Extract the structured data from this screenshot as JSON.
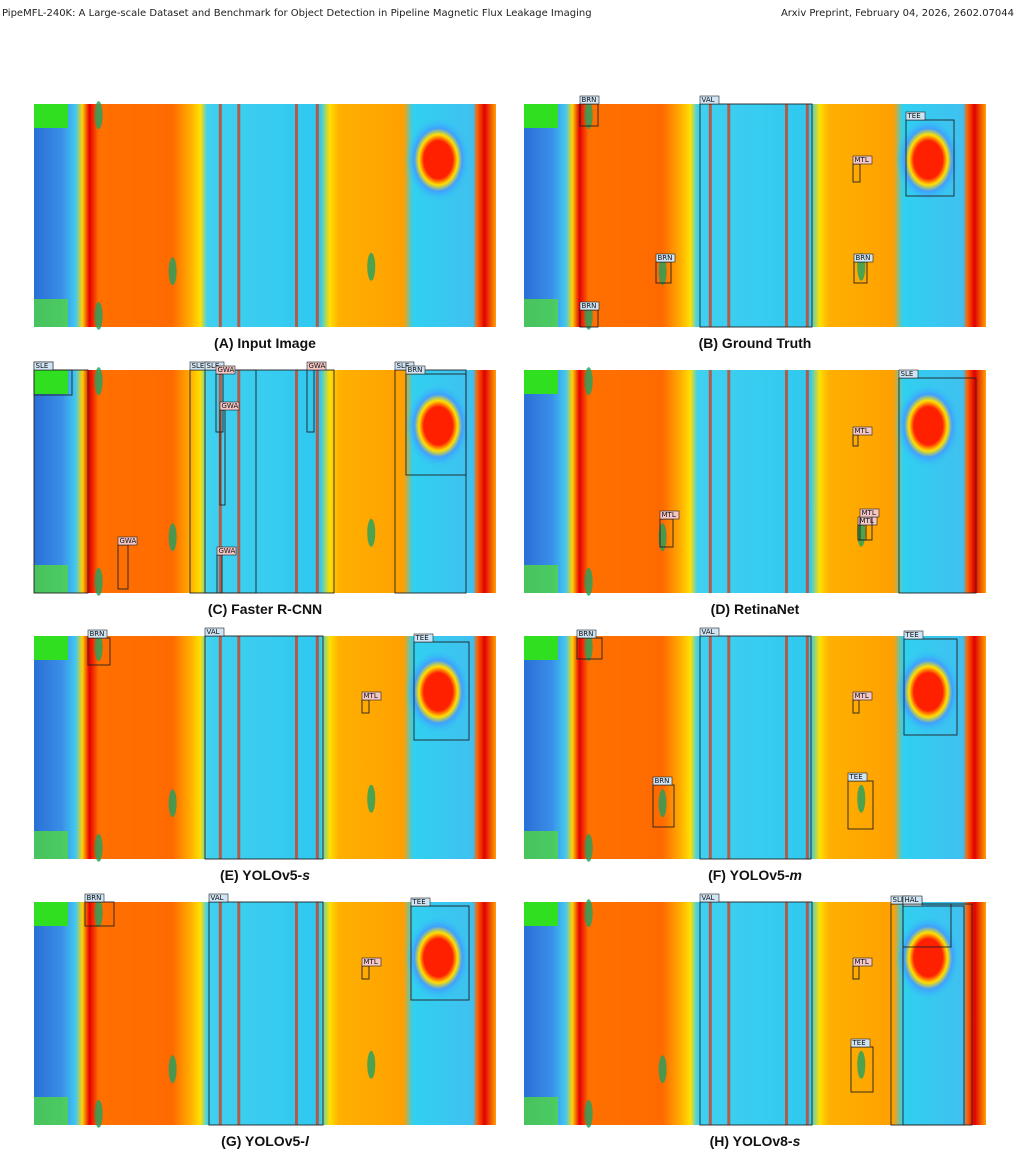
{
  "header": {
    "left": "PipeMFL-240K: A Large-scale Dataset and Benchmark for Object Detection in Pipeline Magnetic Flux Leakage Imaging",
    "right": "Arxiv Preprint, February 04, 2026, 2602.07044"
  },
  "panels": [
    {
      "caption": "(A) Input Image",
      "boxes": []
    },
    {
      "caption": "(B) Ground Truth",
      "boxes": [
        "BRN",
        "VAL",
        "TEE",
        "MTL",
        "BRN",
        "BRN",
        "BRN"
      ]
    },
    {
      "caption": "(C) Faster R-CNN",
      "boxes": [
        "SLE",
        "SLE",
        "GWA",
        "SLE",
        "SLE",
        "GWA",
        "GWA",
        "GWA",
        "GWA",
        "SLE",
        "BRN"
      ]
    },
    {
      "caption": "(D) RetinaNet",
      "boxes": [
        "MTL",
        "MTL",
        "MTL",
        "MTL",
        "SLE"
      ]
    },
    {
      "caption": "(E) YOLOv5-",
      "caption_italic": "s",
      "boxes": [
        "BRN",
        "VAL",
        "TEE",
        "MTL"
      ]
    },
    {
      "caption": "(F) YOLOv5-",
      "caption_italic": "m",
      "boxes": [
        "BRN",
        "VAL",
        "TEE",
        "MTL",
        "BRN",
        "TEE"
      ]
    },
    {
      "caption": "(G) YOLOv5-",
      "caption_italic": "l",
      "boxes": [
        "BRN",
        "VAL",
        "TEE",
        "MTL"
      ]
    },
    {
      "caption": "(H) YOLOv8-",
      "caption_italic": "s",
      "boxes": [
        "VAL",
        "MTL",
        "SLE",
        "SLE",
        "HAL",
        "TEE"
      ]
    }
  ]
}
